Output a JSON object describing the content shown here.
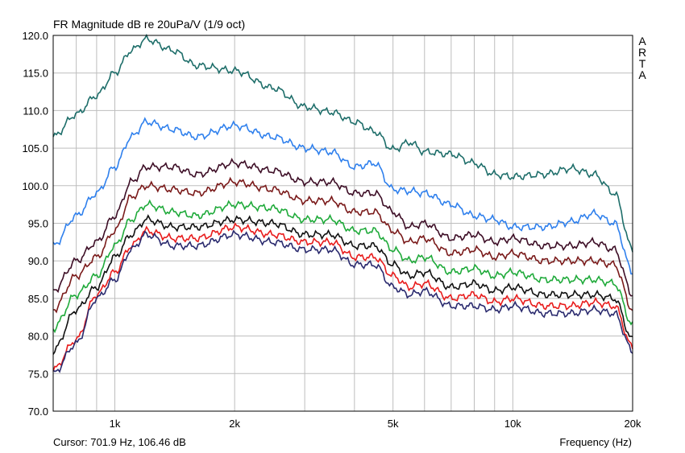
{
  "chart_data": {
    "type": "line",
    "title": "FR Magnitude dB re 20uPa/V (1/9 oct)",
    "xlabel": "Frequency (Hz)",
    "x_scale": "log",
    "xlim": [
      700,
      20000
    ],
    "ylim": [
      70,
      120
    ],
    "yticks": [
      "120.0",
      "115.0",
      "110.0",
      "105.0",
      "100.0",
      "95.0",
      "90.0",
      "85.0",
      "80.0",
      "75.0",
      "70.0"
    ],
    "xtick_labels": [
      {
        "value": 1000,
        "label": "1k"
      },
      {
        "value": 2000,
        "label": "2k"
      },
      {
        "value": 5000,
        "label": "5k"
      },
      {
        "value": 10000,
        "label": "10k"
      },
      {
        "value": 20000,
        "label": "20k"
      }
    ],
    "grid": true,
    "x": [
      700,
      800,
      900,
      1000,
      1100,
      1200,
      1400,
      1600,
      2000,
      2500,
      3000,
      3500,
      4000,
      4500,
      5000,
      5500,
      6000,
      7000,
      8000,
      9000,
      10000,
      12000,
      14000,
      16000,
      18000,
      20000
    ],
    "series": [
      {
        "color": "#1e6e6a",
        "values": [
          106.5,
          109.5,
          112,
          115,
          118,
          119.5,
          118,
          116,
          115.3,
          113,
          110.5,
          109.8,
          108.5,
          107.2,
          104.8,
          105.8,
          104.5,
          104.2,
          103,
          101.5,
          101.2,
          101.5,
          102.3,
          101.5,
          99,
          91.5
        ]
      },
      {
        "color": "#2f80ed",
        "values": [
          92,
          96,
          99,
          102.5,
          106.5,
          108.5,
          107.5,
          106.5,
          108,
          106.5,
          105,
          104.5,
          102.5,
          103,
          99.5,
          99.3,
          99,
          97.5,
          96,
          95.5,
          94.5,
          94.5,
          95.2,
          96.3,
          95,
          88.5
        ]
      },
      {
        "color": "#3d0e26",
        "values": [
          86,
          90,
          92.5,
          96,
          100.5,
          102.5,
          102.5,
          101.5,
          103,
          102,
          100.5,
          100.5,
          99,
          99,
          96.5,
          94.5,
          95,
          93,
          93.5,
          92.5,
          93,
          92,
          92,
          92.5,
          91.5,
          85.5
        ]
      },
      {
        "color": "#7a1a1a",
        "values": [
          83.5,
          88,
          90.5,
          94,
          98.5,
          100,
          99.5,
          99,
          100.5,
          99.5,
          98,
          98,
          96.5,
          96.5,
          94,
          92.5,
          93,
          91,
          91.5,
          90.5,
          91,
          90,
          90,
          90,
          89.5,
          83.5
        ]
      },
      {
        "color": "#1faa3a",
        "values": [
          81,
          85.5,
          88,
          92,
          95.5,
          97.5,
          96.5,
          96,
          97.5,
          97,
          95.5,
          95.5,
          94,
          94,
          91.5,
          90,
          90.5,
          88.5,
          89,
          88,
          88.5,
          87.5,
          87.5,
          87.5,
          87,
          81.5
        ]
      },
      {
        "color": "#111111",
        "values": [
          78,
          83.5,
          86.5,
          90.5,
          93.5,
          95.5,
          94.5,
          94.5,
          95.5,
          95,
          93.5,
          93.5,
          92,
          92,
          89.5,
          88,
          88.5,
          86.5,
          87,
          86,
          86.5,
          85.5,
          85.5,
          85.5,
          85,
          79.5
        ]
      },
      {
        "color": "#e81c1c",
        "values": [
          75.5,
          79.5,
          85.5,
          88.5,
          92,
          94,
          93,
          93,
          94.5,
          93.5,
          92.5,
          92.5,
          90.5,
          90.5,
          88,
          86.5,
          87,
          85,
          85.5,
          84.5,
          85,
          84,
          84,
          84.5,
          84,
          78.5
        ]
      },
      {
        "color": "#2a2a6e",
        "values": [
          75,
          79,
          85,
          87.5,
          91.5,
          93.5,
          92,
          92,
          93.5,
          92.5,
          91.5,
          91.5,
          89.5,
          89.5,
          86.5,
          85.5,
          86,
          84,
          84,
          83.5,
          84,
          83,
          83,
          83.5,
          83,
          78
        ]
      }
    ]
  },
  "branding": {
    "letters": [
      "A",
      "R",
      "T",
      "A"
    ]
  },
  "status": {
    "cursor": "Cursor: 701.9 Hz, 106.46 dB"
  }
}
